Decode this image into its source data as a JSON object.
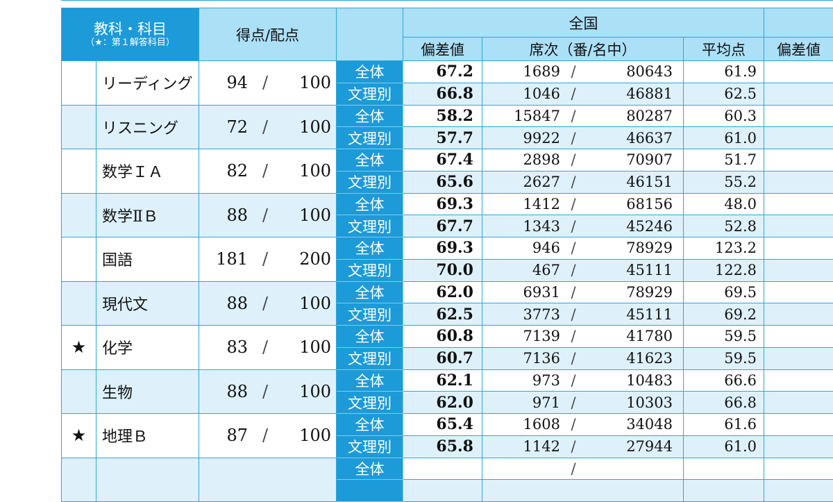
{
  "header": {
    "subject_title": "教科・科目",
    "subject_note": "（★：第１解答科目）",
    "score_title": "得点/配点",
    "national": "全国",
    "deviation": "偏差値",
    "rank": "席次（番/名中）",
    "average": "平均点",
    "deviation_next": "偏差値"
  },
  "rows": [
    {
      "star": "",
      "subject": "リーディング",
      "score": "94",
      "slash": "/",
      "max": "100",
      "shade": "w",
      "lines": [
        {
          "type": "全体",
          "dev": "67.2",
          "rank": "1689",
          "rslash": "/",
          "total": "80643",
          "avg": "61.9"
        },
        {
          "type": "文理別",
          "dev": "66.8",
          "rank": "1046",
          "rslash": "/",
          "total": "46881",
          "avg": "62.5"
        }
      ]
    },
    {
      "star": "",
      "subject": "リスニング",
      "score": "72",
      "slash": "/",
      "max": "100",
      "shade": "l",
      "lines": [
        {
          "type": "全体",
          "dev": "58.2",
          "rank": "15847",
          "rslash": "/",
          "total": "80287",
          "avg": "60.3"
        },
        {
          "type": "文理別",
          "dev": "57.7",
          "rank": "9922",
          "rslash": "/",
          "total": "46637",
          "avg": "61.0"
        }
      ]
    },
    {
      "star": "",
      "subject": "数学ＩＡ",
      "score": "82",
      "slash": "/",
      "max": "100",
      "shade": "w",
      "lines": [
        {
          "type": "全体",
          "dev": "67.4",
          "rank": "2898",
          "rslash": "/",
          "total": "70907",
          "avg": "51.7"
        },
        {
          "type": "文理別",
          "dev": "65.6",
          "rank": "2627",
          "rslash": "/",
          "total": "46151",
          "avg": "55.2"
        }
      ]
    },
    {
      "star": "",
      "subject": "数学ⅡＢ",
      "score": "88",
      "slash": "/",
      "max": "100",
      "shade": "l",
      "lines": [
        {
          "type": "全体",
          "dev": "69.3",
          "rank": "1412",
          "rslash": "/",
          "total": "68156",
          "avg": "48.0"
        },
        {
          "type": "文理別",
          "dev": "67.7",
          "rank": "1343",
          "rslash": "/",
          "total": "45246",
          "avg": "52.8"
        }
      ]
    },
    {
      "star": "",
      "subject": "国語",
      "score": "181",
      "slash": "/",
      "max": "200",
      "shade": "w",
      "lines": [
        {
          "type": "全体",
          "dev": "69.3",
          "rank": "946",
          "rslash": "/",
          "total": "78929",
          "avg": "123.2"
        },
        {
          "type": "文理別",
          "dev": "70.0",
          "rank": "467",
          "rslash": "/",
          "total": "45111",
          "avg": "122.8"
        }
      ]
    },
    {
      "star": "",
      "subject": "現代文",
      "score": "88",
      "slash": "/",
      "max": "100",
      "shade": "l",
      "lines": [
        {
          "type": "全体",
          "dev": "62.0",
          "rank": "6931",
          "rslash": "/",
          "total": "78929",
          "avg": "69.5"
        },
        {
          "type": "文理別",
          "dev": "62.5",
          "rank": "3773",
          "rslash": "/",
          "total": "45111",
          "avg": "69.2"
        }
      ]
    },
    {
      "star": "★",
      "subject": "化学",
      "score": "83",
      "slash": "/",
      "max": "100",
      "shade": "w",
      "lines": [
        {
          "type": "全体",
          "dev": "60.8",
          "rank": "7139",
          "rslash": "/",
          "total": "41780",
          "avg": "59.5"
        },
        {
          "type": "文理別",
          "dev": "60.7",
          "rank": "7136",
          "rslash": "/",
          "total": "41623",
          "avg": "59.5"
        }
      ]
    },
    {
      "star": "",
      "subject": "生物",
      "score": "88",
      "slash": "/",
      "max": "100",
      "shade": "l",
      "lines": [
        {
          "type": "全体",
          "dev": "62.1",
          "rank": "973",
          "rslash": "/",
          "total": "10483",
          "avg": "66.6"
        },
        {
          "type": "文理別",
          "dev": "62.0",
          "rank": "971",
          "rslash": "/",
          "total": "10303",
          "avg": "66.8"
        }
      ]
    },
    {
      "star": "★",
      "subject": "地理Ｂ",
      "score": "87",
      "slash": "/",
      "max": "100",
      "shade": "w",
      "lines": [
        {
          "type": "全体",
          "dev": "65.4",
          "rank": "1608",
          "rslash": "/",
          "total": "34048",
          "avg": "61.6"
        },
        {
          "type": "文理別",
          "dev": "65.8",
          "rank": "1142",
          "rslash": "/",
          "total": "27944",
          "avg": "61.0"
        }
      ]
    },
    {
      "star": "",
      "subject": "",
      "score": "",
      "slash": "",
      "max": "",
      "shade": "l",
      "lines": [
        {
          "type": "全体",
          "dev": "",
          "rank": "",
          "rslash": "/",
          "total": "",
          "avg": ""
        },
        {
          "type": "",
          "dev": "",
          "rank": "",
          "rslash": "",
          "total": "",
          "avg": ""
        }
      ]
    }
  ]
}
